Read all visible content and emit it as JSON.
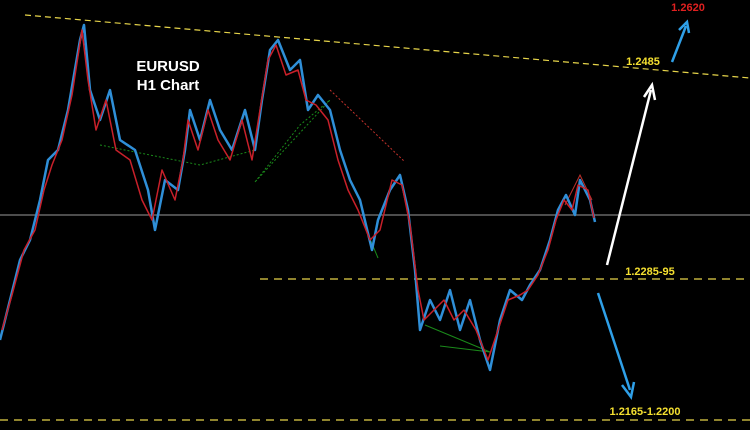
{
  "header": {
    "symbol": "EURUSD",
    "timeframe": "H1 Chart"
  },
  "levels": {
    "target_high": "1.2620",
    "trendline": "1.2485",
    "pivot": "1.2285-95",
    "support": "1.2165-1.2200"
  }
}
